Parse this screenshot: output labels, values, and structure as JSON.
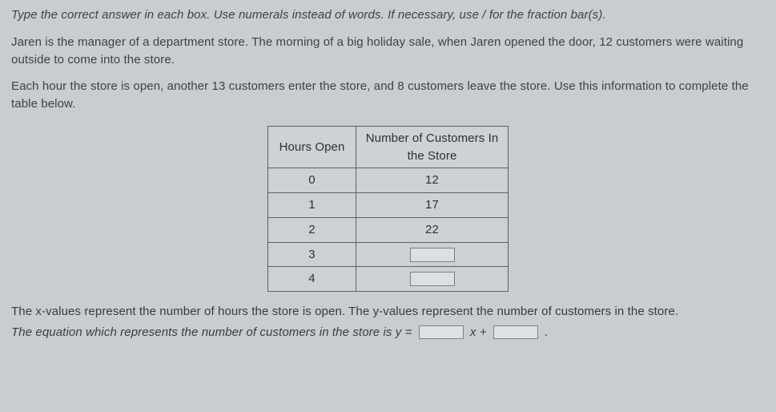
{
  "instructions": "Type the correct answer in each box.  Use numerals instead of words.  If necessary, use / for the fraction bar(s).",
  "problem_p1": "Jaren is the manager of a department store.  The morning of a big holiday sale, when Jaren opened the door, 12 customers were waiting outside to come into the store.",
  "problem_p2": "Each hour the store is open, another 13 customers enter the store, and 8 customers leave the store.  Use this information to complete the table below.",
  "table": {
    "header_left": "Hours Open",
    "header_right": "Number of Customers In the Store",
    "rows": [
      {
        "hours": "0",
        "customers": "12",
        "input": false
      },
      {
        "hours": "1",
        "customers": "17",
        "input": false
      },
      {
        "hours": "2",
        "customers": "22",
        "input": false
      },
      {
        "hours": "3",
        "customers": "",
        "input": true
      },
      {
        "hours": "4",
        "customers": "",
        "input": true
      }
    ]
  },
  "closing_line1": "The x-values represent the number of hours the store is open.  The y-values represent the number of customers in the store.",
  "closing_prefix": "The equation which represents the number of customers in the store is y = ",
  "closing_mid": " x + ",
  "closing_suffix": " ."
}
